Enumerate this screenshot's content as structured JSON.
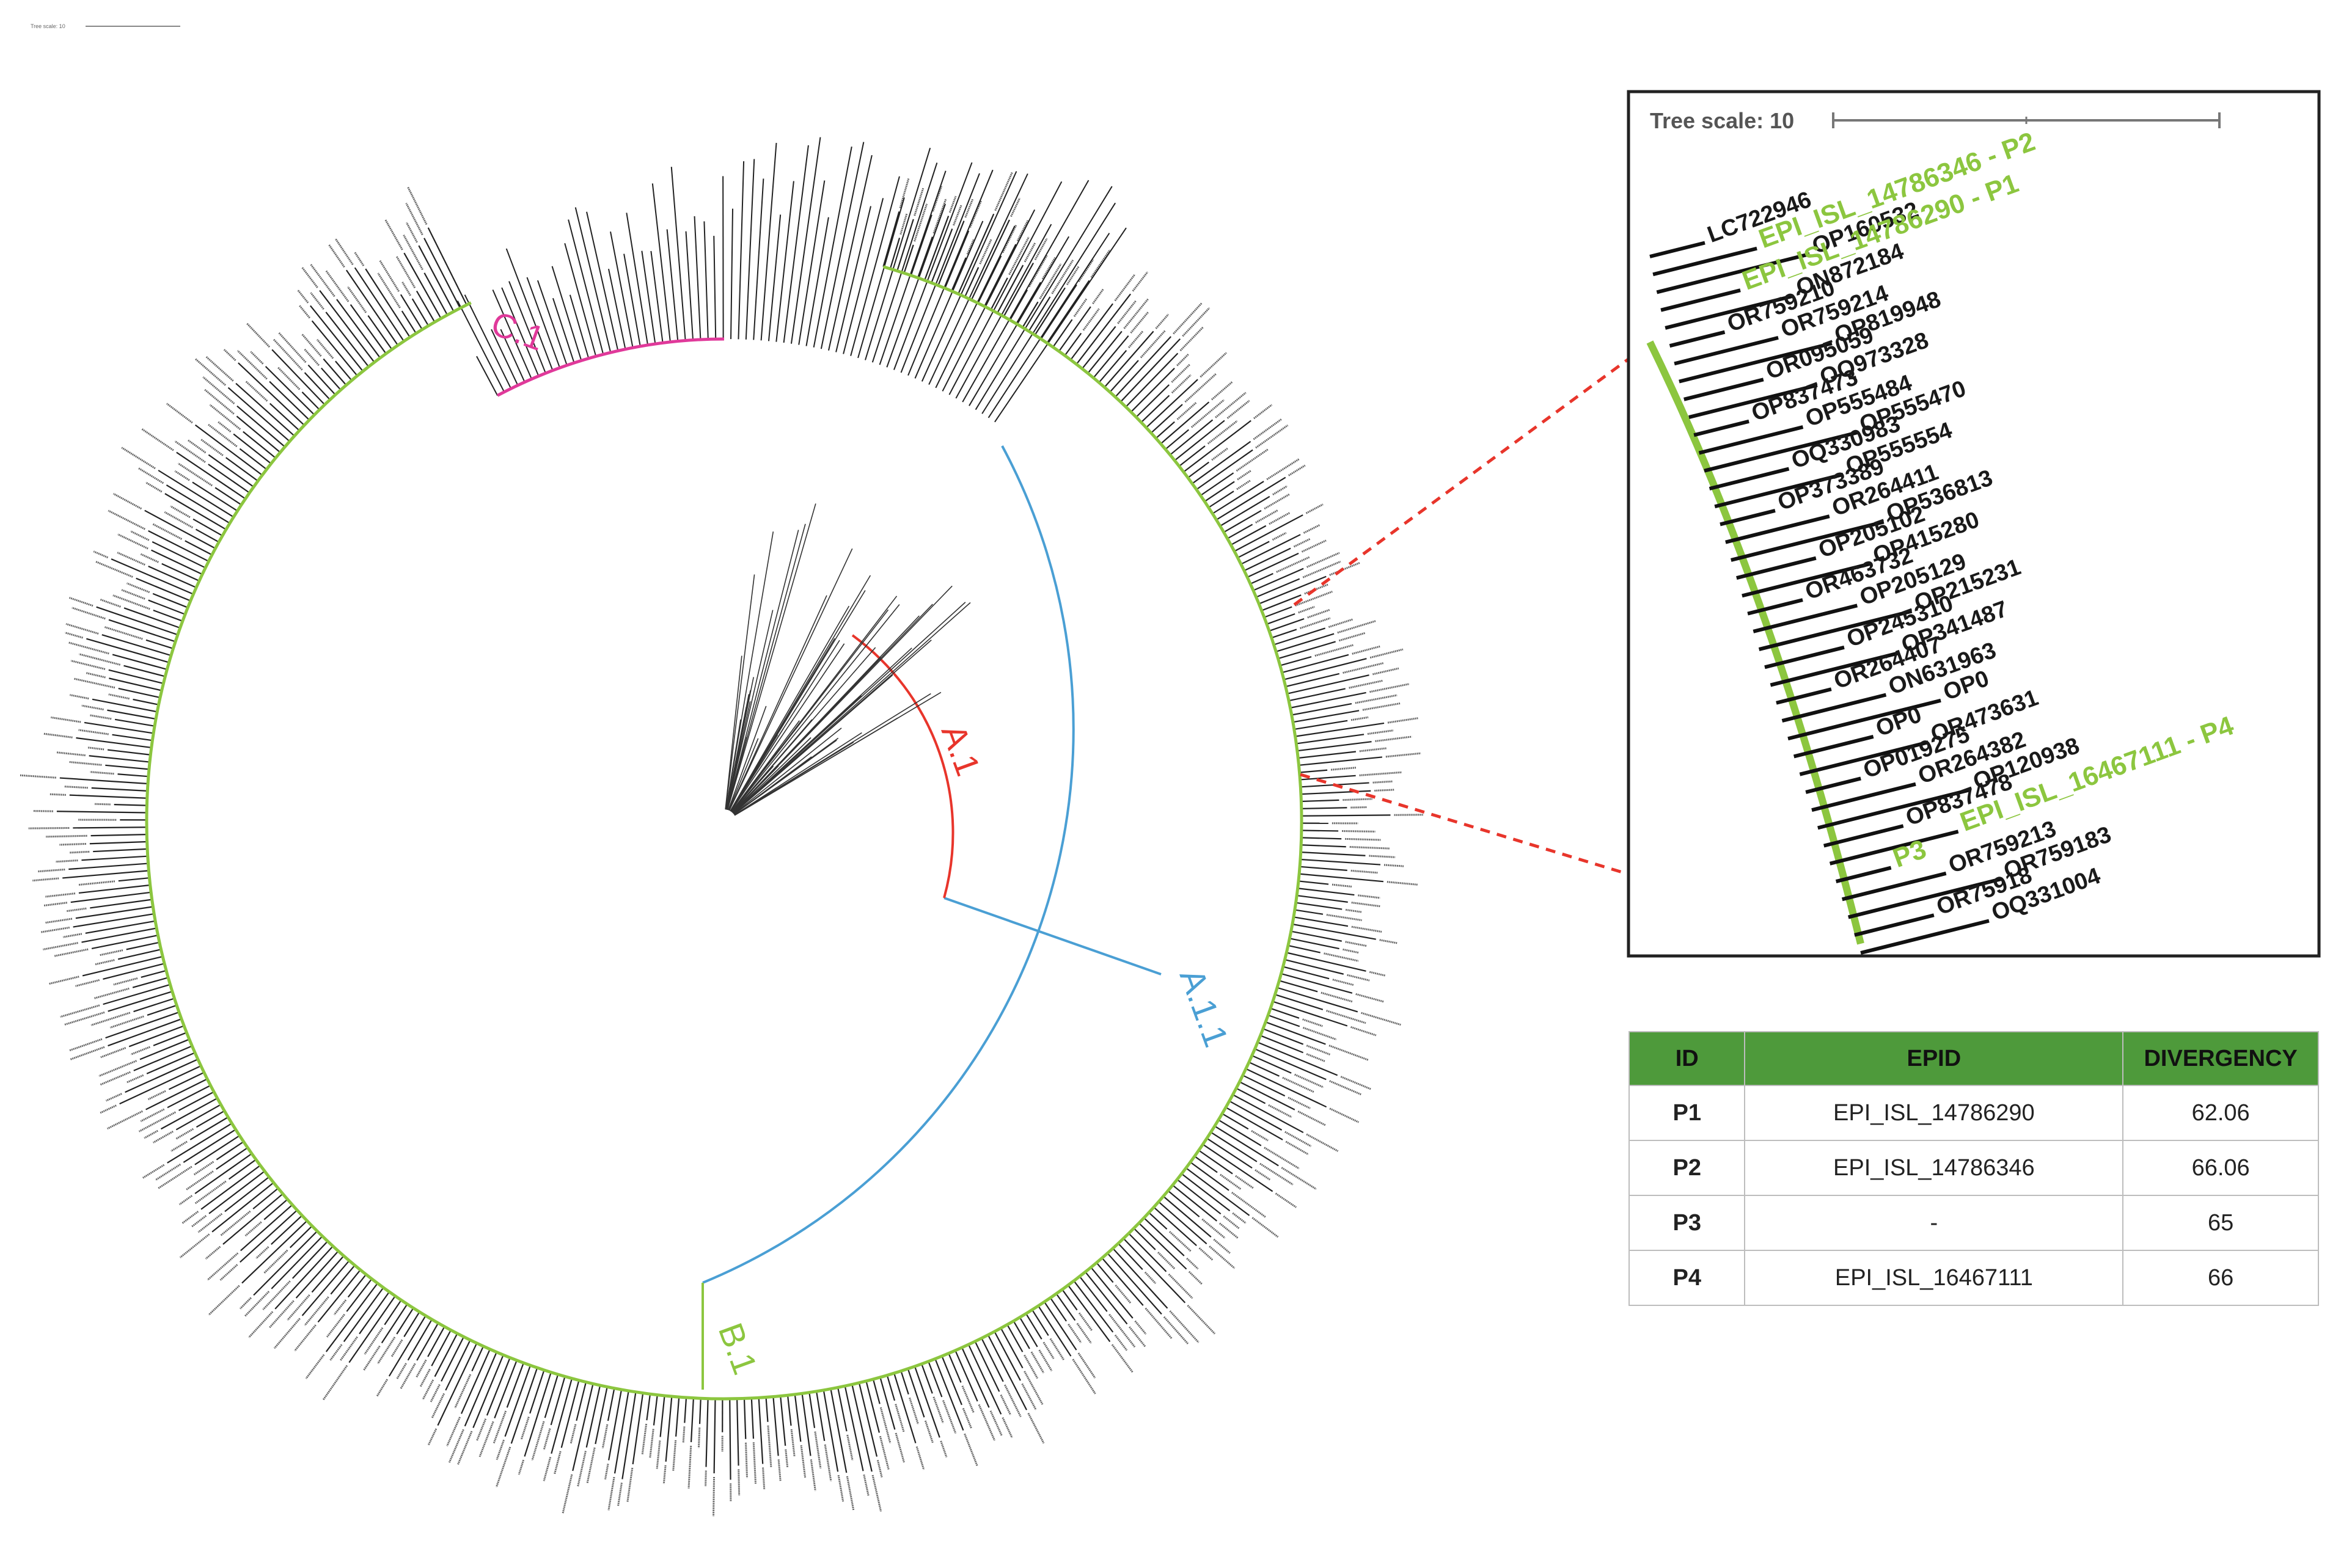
{
  "main_tree": {
    "scale_label": "Tree scale: 10",
    "clades": [
      {
        "label": "C.1",
        "color": "#e0399a"
      },
      {
        "label": "A.1",
        "color": "#e8352b"
      },
      {
        "label": "A.1.1",
        "color": "#4a9fd4"
      },
      {
        "label": "B.1",
        "color": "#8cc63f"
      }
    ]
  },
  "inset": {
    "scale_label": "Tree scale: 10",
    "highlight_color": "#8cc63f",
    "leaves": [
      {
        "label": "LC722946",
        "highlight": false
      },
      {
        "label": "EPI_ISL_14786346 - P2",
        "highlight": true
      },
      {
        "label": "OP160532",
        "highlight": false
      },
      {
        "label": "EPI_ISL_14786290 - P1",
        "highlight": true
      },
      {
        "label": "ON872184",
        "highlight": false
      },
      {
        "label": "OR759210",
        "highlight": false
      },
      {
        "label": "OR759214",
        "highlight": false
      },
      {
        "label": "OP819948",
        "highlight": false
      },
      {
        "label": "OR095059",
        "highlight": false
      },
      {
        "label": "OQ973328",
        "highlight": false
      },
      {
        "label": "OP837473",
        "highlight": false
      },
      {
        "label": "OP555484",
        "highlight": false
      },
      {
        "label": "OP555470",
        "highlight": false
      },
      {
        "label": "OQ330983",
        "highlight": false
      },
      {
        "label": "OP555554",
        "highlight": false
      },
      {
        "label": "OP373389",
        "highlight": false
      },
      {
        "label": "OR264411",
        "highlight": false
      },
      {
        "label": "OP536813",
        "highlight": false
      },
      {
        "label": "OP205102",
        "highlight": false
      },
      {
        "label": "OP415280",
        "highlight": false
      },
      {
        "label": "OR463732",
        "highlight": false
      },
      {
        "label": "OP205129",
        "highlight": false
      },
      {
        "label": "OP215231",
        "highlight": false
      },
      {
        "label": "OP245310",
        "highlight": false
      },
      {
        "label": "OP341487",
        "highlight": false
      },
      {
        "label": "OR264407",
        "highlight": false
      },
      {
        "label": "ON631963",
        "highlight": false
      },
      {
        "label": "OP0",
        "highlight": false
      },
      {
        "label": "OP0",
        "highlight": false
      },
      {
        "label": "OR473631",
        "highlight": false
      },
      {
        "label": "OP019275",
        "highlight": false
      },
      {
        "label": "OR264382",
        "highlight": false
      },
      {
        "label": "OP120938",
        "highlight": false
      },
      {
        "label": "OP837478",
        "highlight": false
      },
      {
        "label": "EPI_ISL_16467111 - P4",
        "highlight": true
      },
      {
        "label": "P3",
        "highlight": true
      },
      {
        "label": "OR759213",
        "highlight": false
      },
      {
        "label": "OR759183",
        "highlight": false
      },
      {
        "label": "OR75918",
        "highlight": false
      },
      {
        "label": "OQ331004",
        "highlight": false
      }
    ]
  },
  "table": {
    "header_color": "#4e9a3b",
    "headers": [
      "ID",
      "EPID",
      "DIVERGENCY"
    ],
    "rows": [
      {
        "id": "P1",
        "epid": "EPI_ISL_14786290",
        "divergency": "62.06"
      },
      {
        "id": "P2",
        "epid": "EPI_ISL_14786346",
        "divergency": "66.06"
      },
      {
        "id": "P3",
        "epid": "-",
        "divergency": "65"
      },
      {
        "id": "P4",
        "epid": "EPI_ISL_16467111",
        "divergency": "66"
      }
    ]
  }
}
